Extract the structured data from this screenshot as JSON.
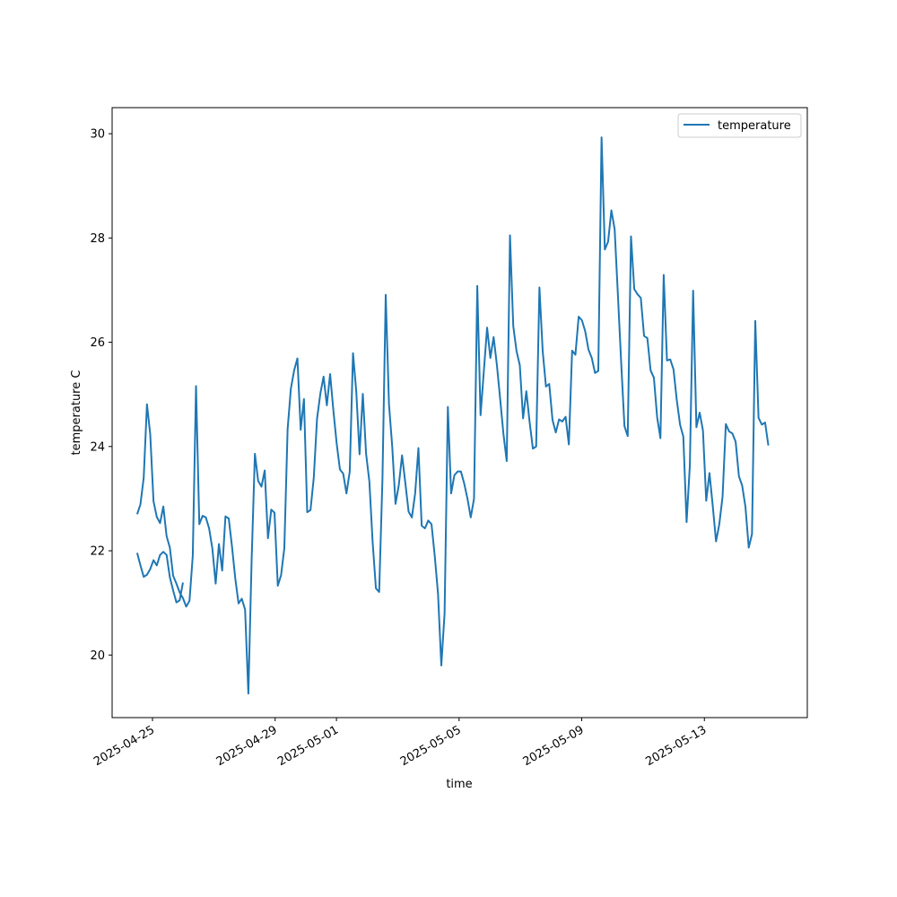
{
  "chart_data": {
    "type": "line",
    "title": "",
    "xlabel": "time",
    "ylabel": "temperature C",
    "x_ticks": [
      "2025-04-25",
      "2025-04-29",
      "2025-05-01",
      "2025-05-05",
      "2025-05-09",
      "2025-05-13"
    ],
    "y_ticks": [
      20,
      22,
      24,
      26,
      28,
      30
    ],
    "x_range": [
      "2025-04-23T16:24",
      "2025-05-16T08:34"
    ],
    "ylim": [
      18.8,
      30.5
    ],
    "grid": false,
    "legend": {
      "placement": "top-right",
      "entries": [
        "temperature"
      ]
    },
    "series": [
      {
        "name": "temperature",
        "color": "#1f77b4",
        "x_start": "2025-04-24T12:00",
        "x_step_hours": 2.56,
        "segments": [
          [
            21.96,
            21.72,
            21.5,
            21.54,
            21.65,
            21.82,
            21.72,
            21.92,
            21.98,
            21.92,
            21.49,
            21.24,
            21.01,
            21.05,
            21.39
          ],
          [
            22.7,
            22.89,
            23.4,
            24.81,
            24.23,
            22.95,
            22.65,
            22.53,
            22.85,
            22.28,
            22.06,
            21.52,
            21.37,
            21.2,
            21.09,
            20.93,
            21.04,
            21.9,
            25.16,
            22.51,
            22.67,
            22.64,
            22.43,
            22.04,
            21.37,
            22.13,
            21.62,
            22.66,
            22.62,
            22.08,
            21.47,
            20.99,
            21.08,
            20.87,
            19.26,
            21.82,
            23.86,
            23.34,
            23.23,
            23.54,
            22.24,
            22.79,
            22.73,
            21.33,
            21.53,
            22.05,
            24.33,
            25.11,
            25.46,
            25.69,
            24.32,
            24.91,
            22.74,
            22.78,
            23.4,
            24.53,
            25.01,
            25.34,
            24.79,
            25.39,
            24.69,
            24.06,
            23.56,
            23.48,
            23.1,
            23.52,
            25.79,
            25.05,
            23.85,
            25.01,
            23.86,
            23.33,
            22.17,
            21.28,
            21.21,
            23.37,
            26.91,
            24.81,
            23.99,
            22.9,
            23.26,
            23.83,
            23.3,
            22.75,
            22.64,
            23.1,
            23.97,
            22.48,
            22.43,
            22.58,
            22.51,
            21.9,
            21.17,
            19.8,
            20.8,
            24.76,
            23.1,
            23.45,
            23.52,
            23.52,
            23.29,
            23.0,
            22.64,
            23.0,
            27.08,
            24.6,
            25.44,
            26.28,
            25.7,
            26.1,
            25.56,
            24.91,
            24.24,
            23.72,
            28.05,
            26.31,
            25.83,
            25.56,
            24.54,
            25.06,
            24.47,
            23.96,
            24.0,
            27.05,
            25.83,
            25.15,
            25.2,
            24.51,
            24.27,
            24.52,
            24.48,
            24.57,
            24.04,
            25.84,
            25.76,
            26.49,
            26.42,
            26.21,
            25.86,
            25.7,
            25.41,
            25.45,
            29.93,
            27.78,
            27.93,
            28.53,
            28.17,
            26.9,
            25.61,
            24.39,
            24.2,
            28.03,
            27.02,
            26.92,
            26.85,
            26.12,
            26.08,
            25.46,
            25.32,
            24.56,
            24.16,
            27.29,
            25.65,
            25.67,
            25.48,
            24.89,
            24.42,
            24.19,
            22.55,
            23.64,
            26.99,
            24.37,
            24.65,
            24.31,
            22.96,
            23.49,
            22.86,
            22.18,
            22.51,
            23.04,
            24.43,
            24.29,
            24.25,
            24.09,
            23.43,
            23.25,
            22.84,
            22.06,
            22.32,
            26.41,
            24.55,
            24.42,
            24.46,
            24.02
          ]
        ]
      }
    ]
  }
}
